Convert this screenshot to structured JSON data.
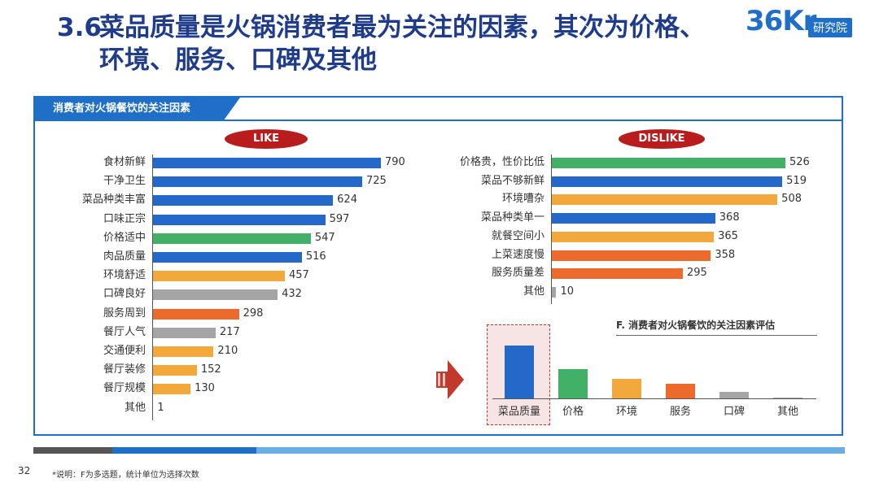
{
  "header": {
    "number": "3.6",
    "title_line1": "菜品质量是火锅消费者最为关注的因素，其次为价格、",
    "title_line2": "环境、服务、口碑及其他"
  },
  "logo": {
    "mark": "36Kr",
    "tag": "研究院"
  },
  "panel": {
    "title": "消费者对火锅餐饮的关注因素"
  },
  "colors": {
    "blue": "#2469c9",
    "green": "#43b067",
    "orange": "#f2a83b",
    "red_orange": "#ec6a2c",
    "gray": "#a5a5a5",
    "brand": "#1f6fc9"
  },
  "chart_data": [
    {
      "type": "bar",
      "orientation": "horizontal",
      "title": "LIKE",
      "categories": [
        "食材新鲜",
        "干净卫生",
        "菜品种类丰富",
        "口味正宗",
        "价格适中",
        "肉品质量",
        "环境舒适",
        "口碑良好",
        "服务周到",
        "餐厅人气",
        "交通便利",
        "餐厅装修",
        "餐厅规模",
        "其他"
      ],
      "values": [
        790,
        725,
        624,
        597,
        547,
        516,
        457,
        432,
        298,
        217,
        210,
        152,
        130,
        1
      ],
      "colors": [
        "blue",
        "blue",
        "blue",
        "blue",
        "green",
        "blue",
        "orange",
        "gray",
        "red_orange",
        "gray",
        "orange",
        "orange",
        "orange",
        "gray"
      ],
      "xlim": [
        0,
        790
      ]
    },
    {
      "type": "bar",
      "orientation": "horizontal",
      "title": "DISLIKE",
      "categories": [
        "价格贵，性价比低",
        "菜品不够新鲜",
        "环境嘈杂",
        "菜品种类单一",
        "就餐空间小",
        "上菜速度慢",
        "服务质量差",
        "其他"
      ],
      "values": [
        526,
        519,
        508,
        368,
        365,
        358,
        295,
        10
      ],
      "colors": [
        "green",
        "blue",
        "orange",
        "blue",
        "orange",
        "red_orange",
        "red_orange",
        "gray"
      ],
      "xlim": [
        0,
        526
      ]
    },
    {
      "type": "bar",
      "orientation": "vertical",
      "title": "F. 消费者对火锅餐饮的关注因素评估",
      "categories": [
        "菜品质量",
        "价格",
        "环境",
        "服务",
        "口碑",
        "其他"
      ],
      "values": [
        100,
        55,
        37,
        28,
        12,
        2
      ],
      "colors": [
        "blue",
        "green",
        "orange",
        "red_orange",
        "gray",
        "gray"
      ],
      "highlight": "菜品质量"
    }
  ],
  "footer": {
    "page": "32",
    "note": "*说明：F为多选题，统计单位为选择次数"
  }
}
